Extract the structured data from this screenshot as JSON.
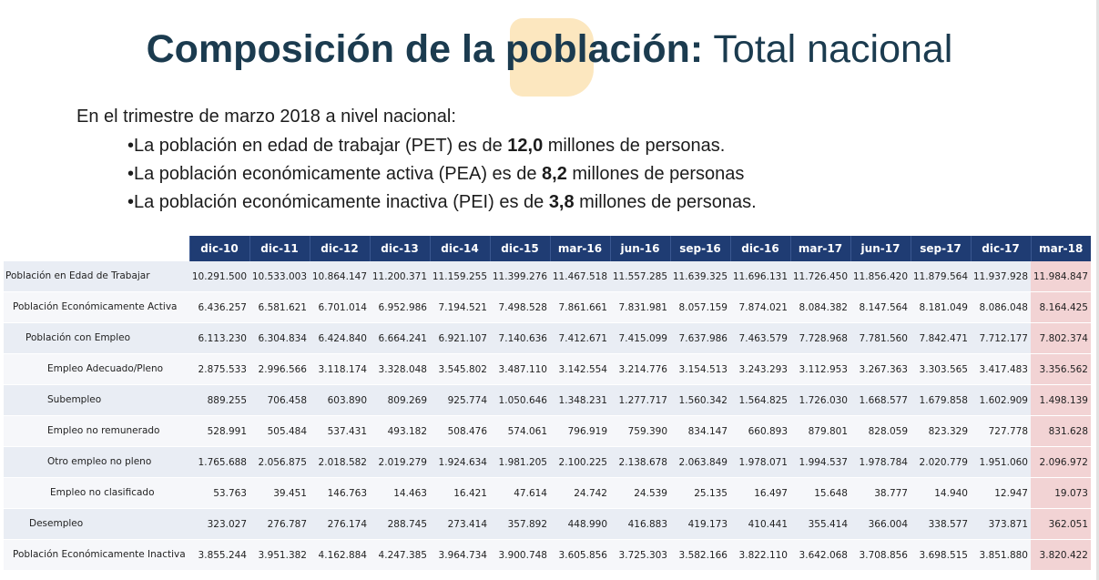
{
  "title": {
    "bold": "Composición de la población:",
    "light": " Total nacional"
  },
  "intro": "En el trimestre de marzo 2018 a nivel nacional:",
  "bullets": [
    {
      "pre": "•La población en edad de trabajar (PET) es de ",
      "bold": "12,0",
      "post": " millones de personas."
    },
    {
      "pre": "•La población económicamente activa (PEA) es de ",
      "bold": "8,2",
      "post": " millones de personas"
    },
    {
      "pre": "•La población económicamente inactiva (PEI) es de ",
      "bold": "3,8",
      "post": " millones de personas."
    }
  ],
  "table": {
    "columns": [
      "dic-10",
      "dic-11",
      "dic-12",
      "dic-13",
      "dic-14",
      "dic-15",
      "mar-16",
      "jun-16",
      "sep-16",
      "dic-16",
      "mar-17",
      "jun-17",
      "sep-17",
      "dic-17",
      "mar-18"
    ],
    "highlight_color": "#f2d3d4",
    "header_color": "#1f3c73",
    "rows": [
      {
        "label": "Población en Edad de Trabajar",
        "values": [
          "10.291.500",
          "10.533.003",
          "10.864.147",
          "11.200.371",
          "11.159.255",
          "11.399.276",
          "11.467.518",
          "11.557.285",
          "11.639.325",
          "11.696.131",
          "11.726.450",
          "11.856.420",
          "11.879.564",
          "11.937.928",
          "11.984.847"
        ]
      },
      {
        "label": "Población Económicamente Activa",
        "values": [
          "6.436.257",
          "6.581.621",
          "6.701.014",
          "6.952.986",
          "7.194.521",
          "7.498.528",
          "7.861.661",
          "7.831.981",
          "8.057.159",
          "7.874.021",
          "8.084.382",
          "8.147.564",
          "8.181.049",
          "8.086.048",
          "8.164.425"
        ]
      },
      {
        "label": "Población con Empleo",
        "values": [
          "6.113.230",
          "6.304.834",
          "6.424.840",
          "6.664.241",
          "6.921.107",
          "7.140.636",
          "7.412.671",
          "7.415.099",
          "7.637.986",
          "7.463.579",
          "7.728.968",
          "7.781.560",
          "7.842.471",
          "7.712.177",
          "7.802.374"
        ]
      },
      {
        "label": "Empleo Adecuado/Pleno",
        "values": [
          "2.875.533",
          "2.996.566",
          "3.118.174",
          "3.328.048",
          "3.545.802",
          "3.487.110",
          "3.142.554",
          "3.214.776",
          "3.154.513",
          "3.243.293",
          "3.112.953",
          "3.267.363",
          "3.303.565",
          "3.417.483",
          "3.356.562"
        ]
      },
      {
        "label": "Subempleo",
        "values": [
          "889.255",
          "706.458",
          "603.890",
          "809.269",
          "925.774",
          "1.050.646",
          "1.348.231",
          "1.277.717",
          "1.560.342",
          "1.564.825",
          "1.726.030",
          "1.668.577",
          "1.679.858",
          "1.602.909",
          "1.498.139"
        ]
      },
      {
        "label": "Empleo no remunerado",
        "values": [
          "528.991",
          "505.484",
          "537.431",
          "493.182",
          "508.476",
          "574.061",
          "796.919",
          "759.390",
          "834.147",
          "660.893",
          "879.801",
          "828.059",
          "823.329",
          "727.778",
          "831.628"
        ]
      },
      {
        "label": "Otro empleo no pleno",
        "values": [
          "1.765.688",
          "2.056.875",
          "2.018.582",
          "2.019.279",
          "1.924.634",
          "1.981.205",
          "2.100.225",
          "2.138.678",
          "2.063.849",
          "1.978.071",
          "1.994.537",
          "1.978.784",
          "2.020.779",
          "1.951.060",
          "2.096.972"
        ]
      },
      {
        "label": "Empleo no clasificado",
        "values": [
          "53.763",
          "39.451",
          "146.763",
          "14.463",
          "16.421",
          "47.614",
          "24.742",
          "24.539",
          "25.135",
          "16.497",
          "15.648",
          "38.777",
          "14.940",
          "12.947",
          "19.073"
        ]
      },
      {
        "label": "Desempleo",
        "values": [
          "323.027",
          "276.787",
          "276.174",
          "288.745",
          "273.414",
          "357.892",
          "448.990",
          "416.883",
          "419.173",
          "410.441",
          "355.414",
          "366.004",
          "338.577",
          "373.871",
          "362.051"
        ]
      },
      {
        "label": "Población Económicamente Inactiva",
        "values": [
          "3.855.244",
          "3.951.382",
          "4.162.884",
          "4.247.385",
          "3.964.734",
          "3.900.748",
          "3.605.856",
          "3.725.303",
          "3.582.166",
          "3.822.110",
          "3.642.068",
          "3.708.856",
          "3.698.515",
          "3.851.880",
          "3.820.422"
        ]
      }
    ]
  }
}
